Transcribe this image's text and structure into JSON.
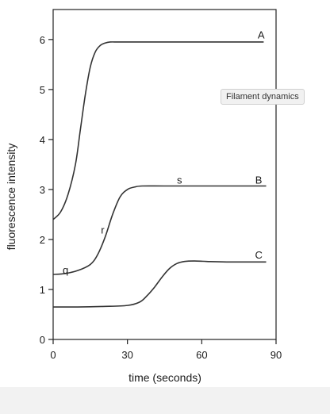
{
  "tooltip": "Filament dynamics",
  "chart_data": {
    "type": "line",
    "xlabel": "time (seconds)",
    "ylabel": "fluorescence intensity",
    "xlim": [
      0,
      90
    ],
    "ylim": [
      0,
      6.6
    ],
    "xticks": [
      0,
      30,
      60,
      90
    ],
    "yticks": [
      0,
      1,
      2,
      3,
      4,
      5,
      6
    ],
    "grid": false,
    "series": [
      {
        "name": "A",
        "x": [
          0,
          3,
          6,
          9,
          11,
          13,
          15,
          17,
          19,
          21,
          23,
          26,
          30,
          40,
          60,
          85
        ],
        "y": [
          2.4,
          2.55,
          2.9,
          3.5,
          4.2,
          4.9,
          5.45,
          5.75,
          5.88,
          5.93,
          5.95,
          5.95,
          5.95,
          5.95,
          5.95,
          5.95
        ]
      },
      {
        "name": "B",
        "x": [
          0,
          5,
          10,
          15,
          18,
          21,
          24,
          27,
          30,
          33,
          36,
          45,
          60,
          75,
          86
        ],
        "y": [
          1.3,
          1.32,
          1.38,
          1.5,
          1.7,
          2.05,
          2.5,
          2.85,
          3.0,
          3.05,
          3.07,
          3.07,
          3.07,
          3.07,
          3.07
        ]
      },
      {
        "name": "C",
        "x": [
          0,
          10,
          20,
          30,
          35,
          38,
          41,
          44,
          47,
          50,
          53,
          57,
          62,
          70,
          86
        ],
        "y": [
          0.65,
          0.65,
          0.66,
          0.68,
          0.75,
          0.88,
          1.05,
          1.25,
          1.42,
          1.52,
          1.56,
          1.57,
          1.56,
          1.55,
          1.55
        ]
      }
    ],
    "annotations": [
      {
        "text": "A",
        "x": 84,
        "y": 6.1
      },
      {
        "text": "B",
        "x": 83,
        "y": 3.2
      },
      {
        "text": "C",
        "x": 83,
        "y": 1.7
      },
      {
        "text": "s",
        "x": 51,
        "y": 3.2
      },
      {
        "text": "r",
        "x": 20,
        "y": 2.2
      },
      {
        "text": "q",
        "x": 5,
        "y": 1.4
      }
    ]
  }
}
